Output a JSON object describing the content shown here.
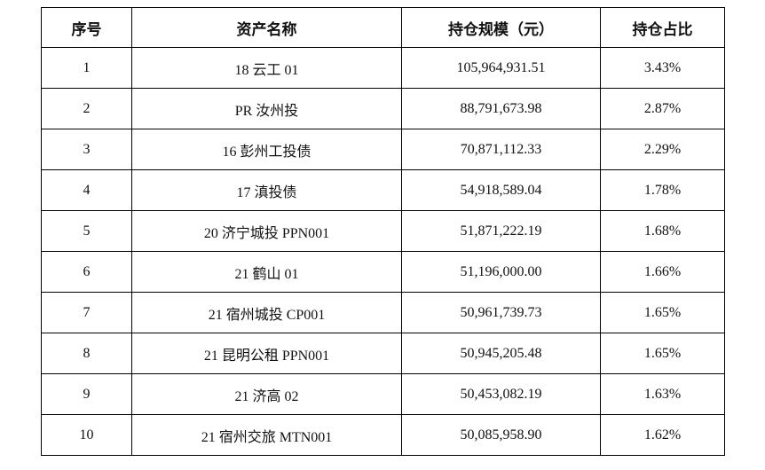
{
  "table": {
    "headers": [
      "序号",
      "资产名称",
      "持仓规模（元）",
      "持仓占比"
    ],
    "rows": [
      {
        "index": "1",
        "name": "18 云工 01",
        "value": "105,964,931.51",
        "ratio": "3.43%"
      },
      {
        "index": "2",
        "name": "PR 汝州投",
        "value": "88,791,673.98",
        "ratio": "2.87%"
      },
      {
        "index": "3",
        "name": "16 彭州工投债",
        "value": "70,871,112.33",
        "ratio": "2.29%"
      },
      {
        "index": "4",
        "name": "17 滇投债",
        "value": "54,918,589.04",
        "ratio": "1.78%"
      },
      {
        "index": "5",
        "name": "20 济宁城投 PPN001",
        "value": "51,871,222.19",
        "ratio": "1.68%"
      },
      {
        "index": "6",
        "name": "21 鹤山 01",
        "value": "51,196,000.00",
        "ratio": "1.66%"
      },
      {
        "index": "7",
        "name": "21 宿州城投 CP001",
        "value": "50,961,739.73",
        "ratio": "1.65%"
      },
      {
        "index": "8",
        "name": "21 昆明公租 PPN001",
        "value": "50,945,205.48",
        "ratio": "1.65%"
      },
      {
        "index": "9",
        "name": "21 济高 02",
        "value": "50,453,082.19",
        "ratio": "1.63%"
      },
      {
        "index": "10",
        "name": "21 宿州交旅 MTN001",
        "value": "50,085,958.90",
        "ratio": "1.62%"
      }
    ]
  }
}
